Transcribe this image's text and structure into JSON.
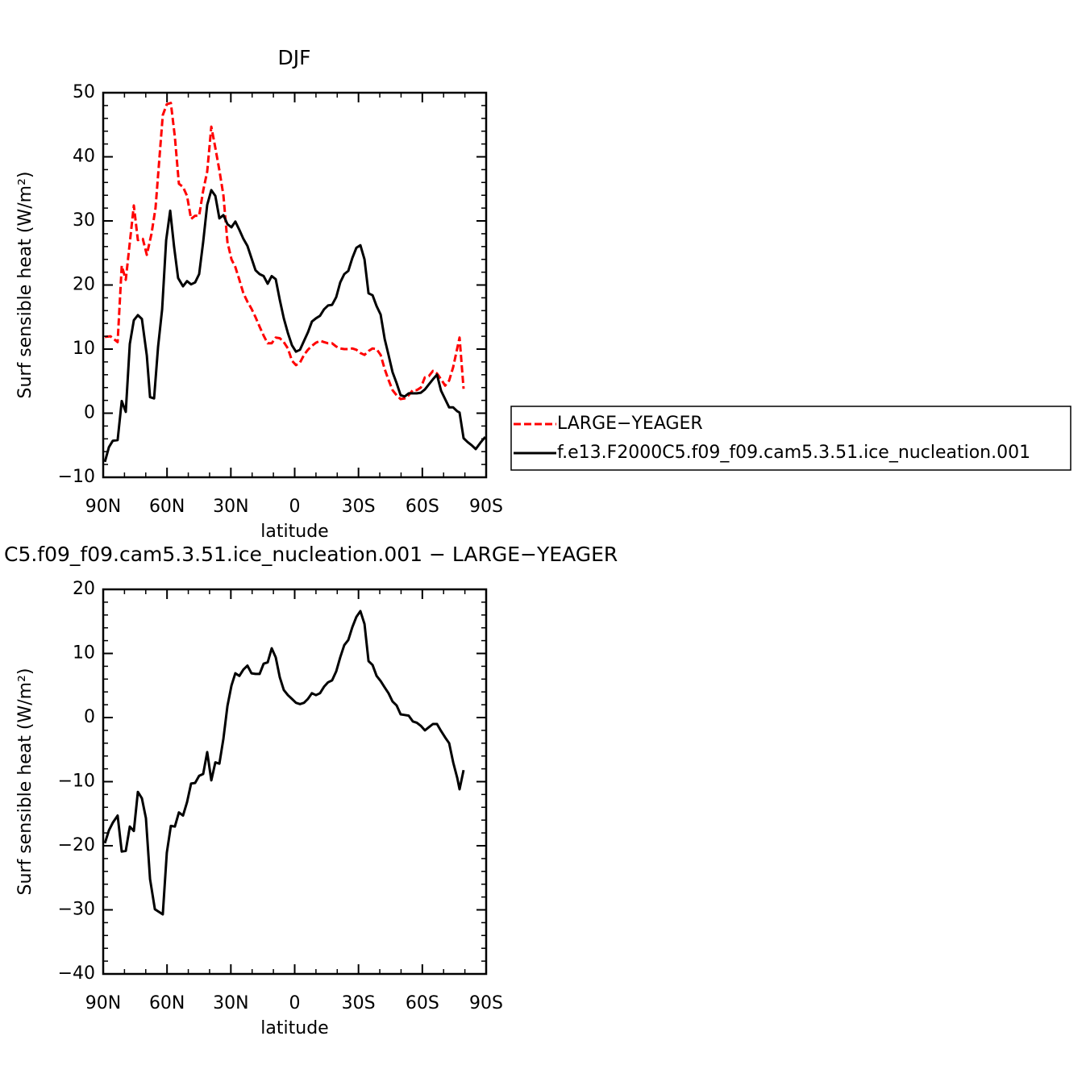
{
  "chart_data": [
    {
      "type": "line",
      "title": "DJF",
      "xlabel": "latitude",
      "ylabel": "Surf sensible heat (W/m²)",
      "xlim": [
        90,
        -90
      ],
      "xticks": [
        {
          "value": 90,
          "label": "90N"
        },
        {
          "value": 60,
          "label": "60N"
        },
        {
          "value": 30,
          "label": "30N"
        },
        0,
        {
          "value": -30,
          "label": "30S"
        },
        {
          "value": -60,
          "label": "60S"
        },
        {
          "value": -90,
          "label": "90S"
        }
      ],
      "ylim": [
        -10,
        50
      ],
      "yticks": [
        {
          "value": -10,
          "label": "−10"
        },
        0,
        10,
        20,
        30,
        40,
        50
      ],
      "legend": "outside right",
      "series": [
        {
          "name": "LARGE−YEAGER",
          "color": "#ff0000",
          "line_style": "dashed",
          "x": [
            89.2,
            86.6,
            83.2,
            81.3,
            79.4,
            75.6,
            73.7,
            71.4,
            69.5,
            67.3,
            65.4,
            62.0,
            60.1,
            58.2,
            56.3,
            54.4,
            52.5,
            50.6,
            48.7,
            46.8,
            44.9,
            43.0,
            41.1,
            39.2,
            37.3,
            35.4,
            33.5,
            31.6,
            29.7,
            27.9,
            26.0,
            24.1,
            22.2,
            20.3,
            18.4,
            16.5,
            14.6,
            12.7,
            10.8,
            8.9,
            7.0,
            5.1,
            3.2,
            1.3,
            -0.6,
            -2.5,
            -4.4,
            -6.2,
            -8.1,
            -10.0,
            -11.9,
            -13.8,
            -15.7,
            -17.6,
            -19.5,
            -21.4,
            -23.3,
            -25.2,
            -27.1,
            -29.0,
            -30.9,
            -32.8,
            -34.7,
            -36.6,
            -38.5,
            -40.4,
            -42.3,
            -44.1,
            -46.0,
            -47.9,
            -49.8,
            -51.7,
            -53.6,
            -55.5,
            -57.4,
            -59.3,
            -61.2,
            -63.1,
            -65.0,
            -66.9,
            -68.8,
            -70.7,
            -72.6,
            -74.5,
            -77.5,
            -79.4
          ],
          "values": [
            11.9,
            12.0,
            11.1,
            23.0,
            20.8,
            32.4,
            27.0,
            27.2,
            24.7,
            28.0,
            32.0,
            46.5,
            48.2,
            48.4,
            43.1,
            35.8,
            35.3,
            33.9,
            30.3,
            30.8,
            30.8,
            34.7,
            37.7,
            44.7,
            41.4,
            37.9,
            34.0,
            26.7,
            24.0,
            22.8,
            20.8,
            18.7,
            17.4,
            16.3,
            15.0,
            13.5,
            12.1,
            10.9,
            10.9,
            11.8,
            11.7,
            11.1,
            10.1,
            8.2,
            7.5,
            7.9,
            9.1,
            9.9,
            10.5,
            11.0,
            11.3,
            11.1,
            10.9,
            10.9,
            10.4,
            10.1,
            10.0,
            10.0,
            10.1,
            9.9,
            9.4,
            9.1,
            9.7,
            10.1,
            10.0,
            9.1,
            6.9,
            5.2,
            3.6,
            2.8,
            2.2,
            2.3,
            2.8,
            3.6,
            3.6,
            4.0,
            5.6,
            5.8,
            6.6,
            6.2,
            5.3,
            4.3,
            5.1,
            7.2,
            11.8,
            3.8
          ]
        },
        {
          "name": "f.e13.F2000C5.f09_f09.cam5.3.51.ice_nucleation.001",
          "color": "#000000",
          "line_style": "solid",
          "x": [
            89.2,
            87.3,
            85.5,
            83.2,
            81.3,
            79.4,
            77.5,
            75.6,
            73.7,
            71.8,
            69.5,
            68.0,
            66.1,
            64.2,
            62.3,
            60.4,
            58.5,
            56.7,
            54.8,
            52.5,
            50.6,
            48.7,
            46.8,
            44.9,
            43.0,
            41.1,
            39.2,
            37.3,
            35.4,
            33.5,
            31.6,
            29.7,
            27.9,
            26.0,
            24.1,
            22.2,
            20.3,
            18.4,
            16.5,
            14.6,
            12.7,
            10.8,
            8.9,
            7.0,
            5.1,
            3.2,
            1.3,
            -0.6,
            -2.5,
            -4.4,
            -6.2,
            -8.1,
            -10.0,
            -11.9,
            -13.8,
            -15.7,
            -17.6,
            -19.5,
            -21.4,
            -23.3,
            -25.2,
            -27.1,
            -29.0,
            -30.9,
            -32.8,
            -34.7,
            -36.6,
            -38.5,
            -40.4,
            -42.3,
            -44.1,
            -46.0,
            -47.9,
            -49.8,
            -51.7,
            -53.6,
            -55.5,
            -57.4,
            -59.3,
            -61.2,
            -63.1,
            -65.0,
            -66.9,
            -68.8,
            -70.7,
            -72.6,
            -74.5,
            -76.4,
            -77.5,
            -79.4,
            -81.3,
            -83.2,
            -85.1,
            -87.3,
            -89.6
          ],
          "values": [
            -7.6,
            -5.3,
            -4.3,
            -4.2,
            1.9,
            0.2,
            10.8,
            14.5,
            15.3,
            14.7,
            9.0,
            2.5,
            2.3,
            10.4,
            16.2,
            27.0,
            31.6,
            26.0,
            21.1,
            19.8,
            20.6,
            20.1,
            20.4,
            21.7,
            26.7,
            32.5,
            34.8,
            33.9,
            30.4,
            30.9,
            29.5,
            29.0,
            29.9,
            28.6,
            27.2,
            26.1,
            24.2,
            22.3,
            21.7,
            21.4,
            20.2,
            21.4,
            20.9,
            17.7,
            14.8,
            12.5,
            10.6,
            9.6,
            9.9,
            11.3,
            12.6,
            14.3,
            14.8,
            15.2,
            16.2,
            16.8,
            16.9,
            18.1,
            20.4,
            21.7,
            22.2,
            24.2,
            25.8,
            26.2,
            24.0,
            18.7,
            18.4,
            16.7,
            15.4,
            11.6,
            9.1,
            6.4,
            4.7,
            2.8,
            2.6,
            3.1,
            3.1,
            3.1,
            3.2,
            3.7,
            4.5,
            5.3,
            6.0,
            3.5,
            2.2,
            0.9,
            0.9,
            0.3,
            0.1,
            -3.9,
            -4.5,
            -5.0,
            -5.6,
            -4.6,
            -3.7
          ]
        }
      ]
    },
    {
      "type": "line",
      "title": "C5.f09_f09.cam5.3.51.ice_nucleation.001 − LARGE−YEAGER",
      "xlabel": "latitude",
      "ylabel": "Surf sensible heat (W/m²)",
      "xlim": [
        90,
        -90
      ],
      "xticks": [
        {
          "value": 90,
          "label": "90N"
        },
        {
          "value": 60,
          "label": "60N"
        },
        {
          "value": 30,
          "label": "30N"
        },
        0,
        {
          "value": -30,
          "label": "30S"
        },
        {
          "value": -60,
          "label": "60S"
        },
        {
          "value": -90,
          "label": "90S"
        }
      ],
      "ylim": [
        -40,
        20
      ],
      "yticks": [
        {
          "value": -40,
          "label": "−40"
        },
        {
          "value": -30,
          "label": "−30"
        },
        {
          "value": -20,
          "label": "−20"
        },
        {
          "value": -10,
          "label": "−10"
        },
        0,
        10,
        20
      ],
      "series": [
        {
          "color": "#000000",
          "line_style": "solid",
          "x": [
            89.2,
            87.3,
            85.5,
            83.2,
            81.3,
            79.4,
            77.5,
            75.6,
            73.7,
            71.8,
            69.9,
            68.0,
            65.7,
            63.9,
            62.0,
            60.1,
            58.2,
            56.3,
            54.4,
            52.5,
            50.6,
            48.7,
            46.8,
            44.9,
            43.0,
            41.1,
            39.2,
            37.3,
            35.4,
            33.5,
            31.6,
            29.7,
            27.9,
            26.0,
            24.1,
            22.2,
            20.3,
            18.4,
            16.5,
            14.6,
            12.7,
            10.8,
            8.9,
            7.0,
            5.1,
            3.2,
            1.3,
            -0.6,
            -2.5,
            -4.4,
            -6.2,
            -8.1,
            -10.0,
            -11.9,
            -13.8,
            -15.7,
            -17.6,
            -19.5,
            -21.4,
            -23.3,
            -25.2,
            -27.1,
            -29.0,
            -30.9,
            -32.8,
            -34.7,
            -36.6,
            -38.5,
            -40.4,
            -42.3,
            -44.1,
            -46.0,
            -47.9,
            -49.8,
            -51.7,
            -53.6,
            -55.5,
            -57.4,
            -59.3,
            -61.2,
            -63.1,
            -65.0,
            -66.9,
            -68.8,
            -70.7,
            -72.6,
            -74.5,
            -76.4,
            -77.5,
            -79.4
          ],
          "values": [
            -19.6,
            -17.6,
            -16.4,
            -15.3,
            -20.9,
            -20.8,
            -17.0,
            -17.7,
            -11.6,
            -12.6,
            -15.7,
            -25.2,
            -29.9,
            -30.3,
            -30.7,
            -21.1,
            -16.9,
            -17.0,
            -14.8,
            -15.3,
            -13.2,
            -10.3,
            -10.2,
            -9.1,
            -8.8,
            -5.4,
            -9.8,
            -7.0,
            -7.2,
            -3.3,
            1.8,
            5.0,
            6.9,
            6.5,
            7.5,
            8.1,
            6.9,
            6.8,
            6.8,
            8.4,
            8.6,
            10.8,
            9.4,
            6.3,
            4.3,
            3.5,
            2.9,
            2.3,
            2.1,
            2.3,
            2.9,
            3.8,
            3.5,
            3.8,
            4.8,
            5.5,
            5.8,
            7.2,
            9.4,
            11.3,
            12.1,
            14.1,
            15.7,
            16.6,
            14.6,
            8.8,
            8.2,
            6.5,
            5.7,
            4.7,
            3.8,
            2.5,
            1.9,
            0.5,
            0.4,
            0.3,
            -0.6,
            -0.8,
            -1.3,
            -2.0,
            -1.5,
            -1.0,
            -1.0,
            -2.1,
            -3.1,
            -4.0,
            -7.0,
            -9.4,
            -11.2,
            -8.2
          ]
        }
      ]
    }
  ]
}
